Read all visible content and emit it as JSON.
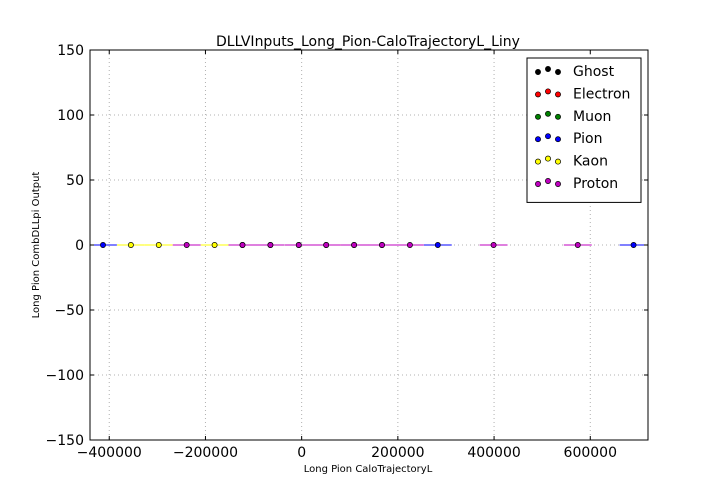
{
  "chart_data": {
    "type": "scatter",
    "title": "DLLVInputs_Long_Pion-CaloTrajectoryL_Liny",
    "xlabel": "Long Pion CaloTrajectoryL",
    "ylabel": "Long Pion CombDLLpi Output",
    "xlim": [
      -440000,
      720000
    ],
    "ylim": [
      -150,
      150
    ],
    "xticks": [
      -400000,
      -200000,
      0,
      200000,
      400000,
      600000
    ],
    "yticks": [
      -150,
      -100,
      -50,
      0,
      50,
      100,
      150
    ],
    "grid": true,
    "legend_position": "top-right",
    "series": [
      {
        "name": "Ghost",
        "color": "#000000",
        "points": []
      },
      {
        "name": "Electron",
        "color": "#ff0000",
        "points": []
      },
      {
        "name": "Muon",
        "color": "#008000",
        "points": []
      },
      {
        "name": "Pion",
        "color": "#0000ff",
        "points": [
          {
            "x": 690000,
            "y": 0,
            "xerr": 29000
          },
          {
            "x": 283000,
            "y": 0,
            "xerr": 29000
          },
          {
            "x": -413000,
            "y": 0,
            "xerr": 29000
          },
          {
            "x": 167000,
            "y": 0,
            "xerr": 29000
          },
          {
            "x": -123000,
            "y": 0,
            "xerr": 29000
          },
          {
            "x": -6000,
            "y": 0,
            "xerr": 29000
          }
        ]
      },
      {
        "name": "Kaon",
        "color": "#ffff00",
        "points": [
          {
            "x": -355000,
            "y": 0,
            "xerr": 29000
          },
          {
            "x": -297000,
            "y": 0,
            "xerr": 29000
          },
          {
            "x": -181000,
            "y": 0,
            "xerr": 29000
          },
          {
            "x": -65000,
            "y": 0,
            "xerr": 29000
          },
          {
            "x": 51000,
            "y": 0,
            "xerr": 29000
          },
          {
            "x": 109000,
            "y": 0,
            "xerr": 29000
          }
        ]
      },
      {
        "name": "Proton",
        "color": "#bf00bf",
        "points": [
          {
            "x": -239000,
            "y": 0,
            "xerr": 29000
          },
          {
            "x": -123000,
            "y": 0,
            "xerr": 29000
          },
          {
            "x": -65000,
            "y": 0,
            "xerr": 29000
          },
          {
            "x": -6000,
            "y": 0,
            "xerr": 29000
          },
          {
            "x": 51000,
            "y": 0,
            "xerr": 29000
          },
          {
            "x": 109000,
            "y": 0,
            "xerr": 29000
          },
          {
            "x": 167000,
            "y": 0,
            "xerr": 29000
          },
          {
            "x": 225000,
            "y": 0,
            "xerr": 29000
          },
          {
            "x": 399000,
            "y": 0,
            "xerr": 29000
          },
          {
            "x": 574000,
            "y": 0,
            "xerr": 29000
          }
        ]
      }
    ]
  }
}
